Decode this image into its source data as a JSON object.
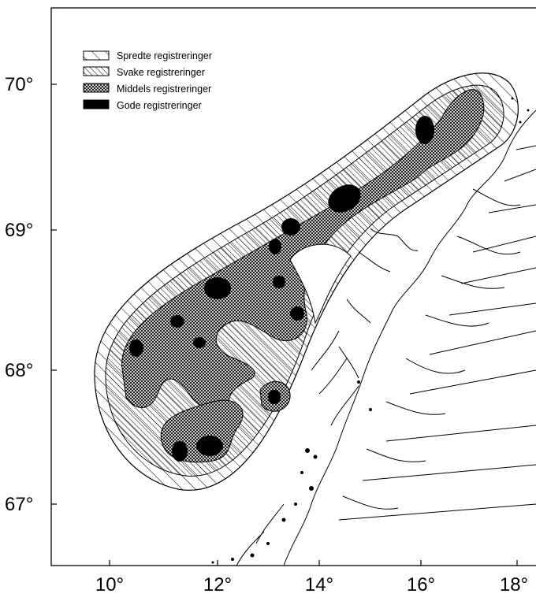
{
  "map": {
    "y_ticks": [
      "70°",
      "69°",
      "68°",
      "67°"
    ],
    "x_ticks": [
      "10°",
      "12°",
      "14°",
      "16°",
      "18°"
    ],
    "legend": [
      {
        "label": "Spredte registreringer",
        "pattern": "sparse-hatch"
      },
      {
        "label": "Svake registreringer",
        "pattern": "dense-hatch"
      },
      {
        "label": "Middels registreringer",
        "pattern": "crosshatch"
      },
      {
        "label": "Gode registreringer",
        "pattern": "solid-black"
      }
    ],
    "colors": {
      "ink": "#000000",
      "background": "#ffffff"
    }
  }
}
